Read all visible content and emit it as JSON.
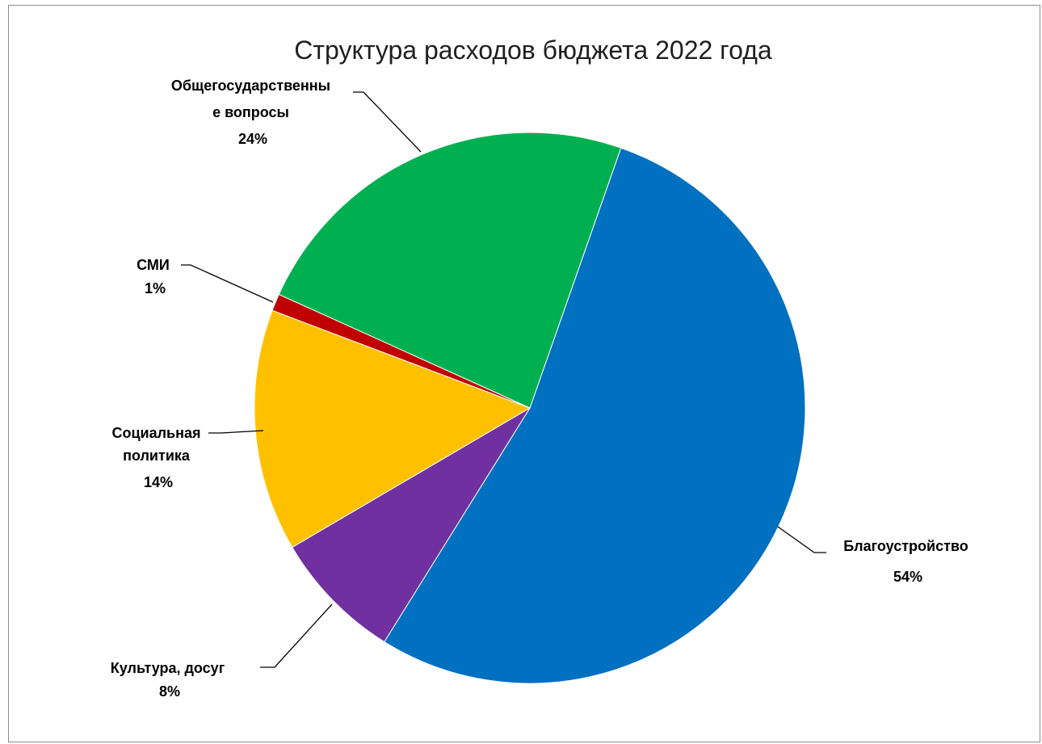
{
  "chart_data": {
    "type": "pie",
    "title": "Структура расходов бюджета 2022 года",
    "slices": [
      {
        "name": "Благоустройство",
        "percent_label": "54%",
        "value": 53.5,
        "color": "#0070C0"
      },
      {
        "name": "Культура, досуг",
        "percent_label": "8%",
        "value": 7.7,
        "color": "#7030A0"
      },
      {
        "name": "Социальная политика",
        "percent_label": "14%",
        "value": 14.2,
        "color": "#FFC000"
      },
      {
        "name": "СМИ",
        "percent_label": "1%",
        "value": 1.0,
        "color": "#C00000"
      },
      {
        "name": "Общегосударственные вопросы",
        "percent_label": "24%",
        "value": 23.6,
        "color": "#00B050"
      }
    ]
  }
}
